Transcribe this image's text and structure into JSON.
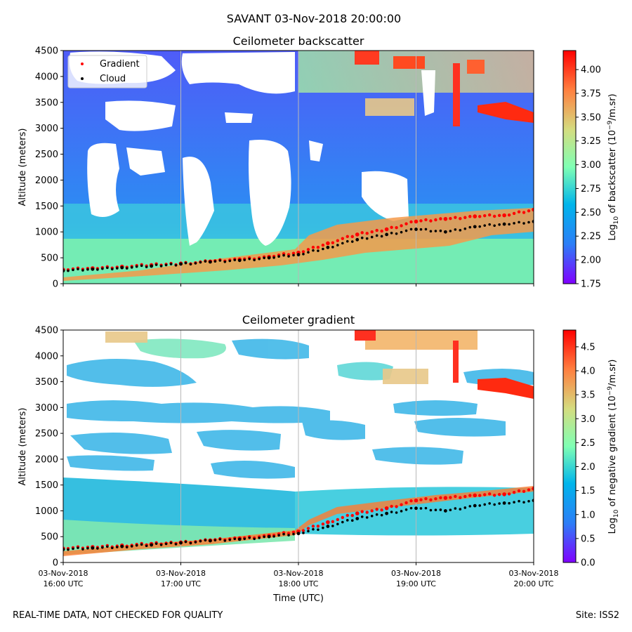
{
  "suptitle": "SAVANT 03-Nov-2018 20:00:00",
  "footer_left": "REAL-TIME DATA, NOT CHECKED FOR QUALITY",
  "footer_right": "Site: ISS2",
  "chart_data": [
    {
      "type": "heatmap",
      "title": "Ceilometer backscatter",
      "ylabel": "Altitude (meters)",
      "xlabel": "",
      "xlim": [
        "03-Nov-2018 16:00 UTC",
        "03-Nov-2018 20:00 UTC"
      ],
      "ylim": [
        0,
        4500
      ],
      "yticks": [
        "0",
        "500",
        "1000",
        "1500",
        "2000",
        "2500",
        "3000",
        "3500",
        "4000",
        "4500"
      ],
      "grid": "vertical lines at hourly ticks",
      "colorbar": {
        "label": "Log10 of backscatter (10^-9/m.sr)",
        "label_main": "Log",
        "label_sub": "10",
        "label_rest": " of backscatter (10",
        "label_sup": "−9",
        "label_end": "/m.sr)",
        "range": [
          1.75,
          4.2
        ],
        "ticks": [
          "1.75",
          "2.00",
          "2.25",
          "2.50",
          "2.75",
          "3.00",
          "3.25",
          "3.50",
          "3.75",
          "4.00"
        ],
        "colormap": "rainbow"
      },
      "legend": {
        "placement": "upper-left",
        "entries": [
          {
            "label": "Gradient",
            "color": "#ff0000"
          },
          {
            "label": "Cloud",
            "color": "#000000"
          }
        ]
      },
      "series": [
        {
          "name": "Gradient",
          "x": [
            16.0,
            16.25,
            16.5,
            16.75,
            17.0,
            17.25,
            17.5,
            17.75,
            18.0,
            18.25,
            18.5,
            18.75,
            19.0,
            19.25,
            19.5,
            19.75,
            20.0
          ],
          "y": [
            270,
            300,
            330,
            360,
            390,
            430,
            470,
            520,
            600,
            780,
            950,
            1050,
            1200,
            1250,
            1300,
            1320,
            1430
          ]
        },
        {
          "name": "Cloud",
          "x": [
            16.0,
            16.25,
            16.5,
            16.75,
            17.0,
            17.25,
            17.5,
            17.75,
            18.0,
            18.25,
            18.5,
            18.75,
            19.0,
            19.25,
            19.5,
            19.75,
            20.0
          ],
          "y": [
            250,
            280,
            310,
            340,
            380,
            420,
            450,
            500,
            560,
            700,
            850,
            950,
            1050,
            1000,
            1100,
            1150,
            1200
          ]
        }
      ]
    },
    {
      "type": "heatmap",
      "title": "Ceilometer gradient",
      "ylabel": "Altitude (meters)",
      "xlabel": "Time (UTC)",
      "xlim": [
        "03-Nov-2018 16:00 UTC",
        "03-Nov-2018 20:00 UTC"
      ],
      "ylim": [
        0,
        4500
      ],
      "yticks": [
        "0",
        "500",
        "1000",
        "1500",
        "2000",
        "2500",
        "3000",
        "3500",
        "4000",
        "4500"
      ],
      "xticks": [
        {
          "line1": "03-Nov-2018",
          "line2": "16:00 UTC"
        },
        {
          "line1": "03-Nov-2018",
          "line2": "17:00 UTC"
        },
        {
          "line1": "03-Nov-2018",
          "line2": "18:00 UTC"
        },
        {
          "line1": "03-Nov-2018",
          "line2": "19:00 UTC"
        },
        {
          "line1": "03-Nov-2018",
          "line2": "20:00 UTC"
        }
      ],
      "grid": "vertical lines at hourly ticks",
      "colorbar": {
        "label": "Log10 of negative gradient (10^-9/m.sr)",
        "label_main": "Log",
        "label_sub": "10",
        "label_rest": " of negative gradient (10",
        "label_sup": "−9",
        "label_end": "/m.sr)",
        "range": [
          0.0,
          4.85
        ],
        "ticks": [
          "0.0",
          "0.5",
          "1.0",
          "1.5",
          "2.0",
          "2.5",
          "3.0",
          "3.5",
          "4.0",
          "4.5"
        ],
        "colormap": "rainbow"
      },
      "series": [
        {
          "name": "Gradient",
          "x": [
            16.0,
            16.25,
            16.5,
            16.75,
            17.0,
            17.25,
            17.5,
            17.75,
            18.0,
            18.25,
            18.5,
            18.75,
            19.0,
            19.25,
            19.5,
            19.75,
            20.0
          ],
          "y": [
            270,
            300,
            330,
            360,
            390,
            430,
            470,
            520,
            600,
            780,
            950,
            1050,
            1200,
            1250,
            1300,
            1320,
            1430
          ]
        },
        {
          "name": "Cloud",
          "x": [
            16.0,
            16.25,
            16.5,
            16.75,
            17.0,
            17.25,
            17.5,
            17.75,
            18.0,
            18.25,
            18.5,
            18.75,
            19.0,
            19.25,
            19.5,
            19.75,
            20.0
          ],
          "y": [
            250,
            280,
            310,
            340,
            380,
            420,
            450,
            500,
            560,
            700,
            850,
            950,
            1050,
            1000,
            1100,
            1150,
            1200
          ]
        }
      ]
    }
  ]
}
